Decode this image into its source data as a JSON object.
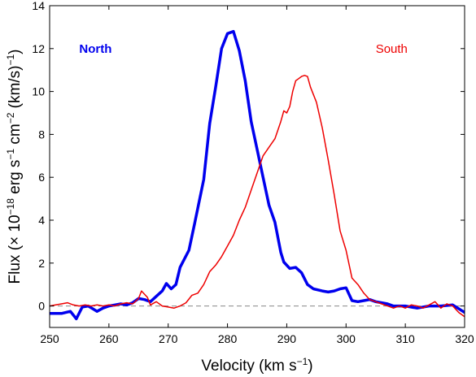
{
  "chart_data": {
    "type": "line",
    "title": "",
    "xlabel": "Velocity (km s",
    "xlabel_sup": "−1",
    "xlabel_close": ")",
    "ylabel": "Flux (× 10",
    "ylabel_sup1": "−18",
    "ylabel_mid1": " erg s",
    "ylabel_sup2": "−1",
    "ylabel_mid2": " cm",
    "ylabel_sup3": "−2",
    "ylabel_mid3": " (km/s)",
    "ylabel_sup4": "−1",
    "ylabel_close": ")",
    "xlim": [
      250,
      320
    ],
    "ylim": [
      -1,
      14
    ],
    "xticks": [
      250,
      260,
      270,
      280,
      290,
      300,
      310,
      320
    ],
    "yticks": [
      0,
      2,
      4,
      6,
      8,
      10,
      12,
      14
    ],
    "grid": false,
    "zero_line": {
      "y": 0,
      "style": "dashed",
      "color": "#888888"
    },
    "series": [
      {
        "name": "North",
        "color": "#0000ee",
        "width": 3.5,
        "label_pos": [
          255,
          12
        ],
        "x": [
          250,
          252,
          253.5,
          254.5,
          255.5,
          256.5,
          258,
          259,
          260,
          261,
          262,
          263,
          264,
          265,
          266,
          267,
          268,
          269,
          269.7,
          270.5,
          271.3,
          272,
          273.5,
          274.5,
          276,
          277,
          278,
          279,
          280,
          281,
          282,
          283,
          284,
          285,
          286,
          287,
          288,
          289,
          289.5,
          290.5,
          291.5,
          292.5,
          293.5,
          294.5,
          296,
          297,
          298,
          299,
          300,
          301,
          302,
          303,
          304,
          305,
          306,
          307,
          308,
          310,
          312,
          314,
          316,
          318,
          320
        ],
        "y": [
          -0.35,
          -0.35,
          -0.25,
          -0.6,
          -0.05,
          0.0,
          -0.25,
          -0.1,
          0.0,
          0.05,
          0.1,
          0.05,
          0.15,
          0.35,
          0.3,
          0.2,
          0.45,
          0.7,
          1.05,
          0.8,
          1.0,
          1.8,
          2.6,
          3.9,
          5.9,
          8.5,
          10.2,
          12.0,
          12.7,
          12.8,
          11.9,
          10.5,
          8.6,
          7.3,
          6.0,
          4.7,
          3.9,
          2.5,
          2.05,
          1.75,
          1.8,
          1.55,
          1.0,
          0.8,
          0.7,
          0.65,
          0.7,
          0.8,
          0.85,
          0.25,
          0.2,
          0.25,
          0.3,
          0.2,
          0.15,
          0.1,
          0.0,
          0.0,
          -0.1,
          0.0,
          0.0,
          0.05,
          -0.3
        ]
      },
      {
        "name": "South",
        "color": "#ee0000",
        "width": 1.5,
        "label_pos": [
          305,
          12
        ],
        "x": [
          250,
          251,
          252,
          253,
          254,
          255,
          256,
          257,
          258,
          259,
          260,
          261,
          262,
          263,
          264,
          265,
          265.5,
          266.5,
          267,
          268,
          269,
          270,
          271,
          272,
          273,
          274,
          275,
          276,
          277,
          278,
          279,
          280,
          281,
          282,
          283,
          284,
          285,
          286,
          287,
          288,
          289,
          289.5,
          290,
          290.5,
          291,
          291.5,
          292,
          292.5,
          293,
          293.5,
          294,
          295,
          296,
          297,
          298,
          299,
          300,
          301,
          302,
          303,
          304,
          305,
          306,
          307,
          308,
          309,
          310,
          311,
          312,
          313,
          314,
          315,
          316,
          317,
          318,
          319,
          320
        ],
        "y": [
          0.0,
          0.05,
          0.1,
          0.15,
          0.05,
          0.0,
          0.05,
          0.0,
          0.05,
          0.0,
          0.05,
          0.0,
          0.1,
          0.15,
          0.1,
          0.35,
          0.7,
          0.4,
          0.05,
          0.2,
          0.0,
          -0.05,
          -0.1,
          0.0,
          0.15,
          0.5,
          0.6,
          1.0,
          1.6,
          1.9,
          2.3,
          2.8,
          3.3,
          4.0,
          4.6,
          5.4,
          6.2,
          7.0,
          7.4,
          7.8,
          8.6,
          9.1,
          9.0,
          9.3,
          10.0,
          10.5,
          10.6,
          10.7,
          10.75,
          10.7,
          10.2,
          9.5,
          8.3,
          6.8,
          5.2,
          3.5,
          2.6,
          1.3,
          1.0,
          0.6,
          0.3,
          0.2,
          0.1,
          0.0,
          -0.1,
          0.0,
          -0.1,
          0.05,
          0.0,
          -0.1,
          0.05,
          0.2,
          -0.1,
          0.1,
          0.0,
          -0.3,
          -0.5
        ]
      }
    ]
  }
}
